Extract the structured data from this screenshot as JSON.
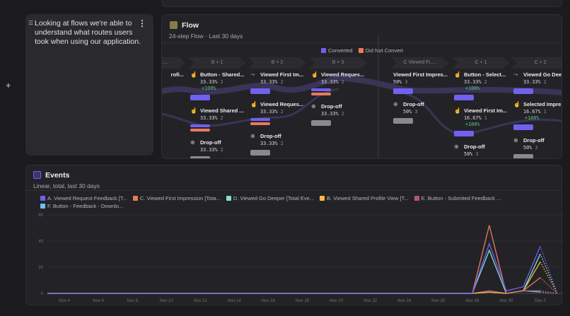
{
  "note": {
    "text": "Looking at flows we're able to understand what routes users took when using our application.",
    "menu_icon": "kebab-menu-icon",
    "drag_icon": "drag-handle-icon"
  },
  "add_icon": "+",
  "flow": {
    "title": "Flow",
    "subtitle": "24-step Flow · Last 30 days",
    "legend": [
      {
        "label": "Converted",
        "color": "#7161f0"
      },
      {
        "label": "Did Not Convert",
        "color": "#ea7a59"
      }
    ],
    "columns": [
      {
        "header": "h.....",
        "nodes": [
          {
            "name": "rofi...",
            "pct": "",
            "count": "",
            "lift": "",
            "bars": []
          }
        ]
      },
      {
        "header": "B + 1",
        "nodes": [
          {
            "icon": "click-icon",
            "name": "Button - Shared...",
            "pct": "33.33%",
            "count": "2",
            "lift": "+100%",
            "bars": [
              "converted"
            ]
          },
          {
            "icon": "click-icon",
            "name": "Viewed Shared ...",
            "pct": "33.33%",
            "count": "2",
            "lift": "",
            "bars": [
              "converted",
              "not_converted"
            ]
          },
          {
            "icon": "dropoff-icon",
            "name": "Drop-off",
            "pct": "33.33%",
            "count": "2",
            "lift": "",
            "bars": [
              "dropoff"
            ]
          }
        ]
      },
      {
        "header": "B + 2",
        "nodes": [
          {
            "icon": "pageview-icon",
            "name": "Viewed First Im...",
            "pct": "33.33%",
            "count": "2",
            "lift": "",
            "bars": [
              "converted"
            ]
          },
          {
            "icon": "click-icon",
            "name": "Viewed Reques...",
            "pct": "33.33%",
            "count": "2",
            "lift": "",
            "bars": [
              "converted",
              "not_converted"
            ]
          },
          {
            "icon": "dropoff-icon",
            "name": "Drop-off",
            "pct": "33.33%",
            "count": "2",
            "lift": "",
            "bars": [
              "dropoff"
            ]
          }
        ]
      },
      {
        "header": "B + 3",
        "nodes": [
          {
            "icon": "click-icon",
            "name": "Viewed Reques...",
            "pct": "33.33%",
            "count": "2",
            "lift": "",
            "bars": [
              "converted",
              "not_converted"
            ]
          },
          {
            "icon": "dropoff-icon",
            "name": "Drop-off",
            "pct": "33.33%",
            "count": "2",
            "lift": "",
            "bars": [
              "dropoff"
            ]
          }
        ]
      },
      {
        "header": "C  Viewed Fi.....",
        "nodes": [
          {
            "icon": "",
            "name": "Viewed First Impres...",
            "pct": "50%",
            "count": "3",
            "lift": "",
            "bars": [
              "converted"
            ]
          },
          {
            "icon": "dropoff-icon",
            "name": "Drop-off",
            "pct": "50%",
            "count": "3",
            "lift": "",
            "bars": [
              "dropoff"
            ]
          }
        ]
      },
      {
        "header": "C + 1",
        "nodes": [
          {
            "icon": "click-icon",
            "name": "Button - Select...",
            "pct": "33.33%",
            "count": "2",
            "lift": "+100%",
            "bars": [
              "converted"
            ]
          },
          {
            "icon": "click-icon",
            "name": "Viewed First Im...",
            "pct": "16.67%",
            "count": "1",
            "lift": "+100%",
            "bars": [
              "converted"
            ]
          },
          {
            "icon": "dropoff-icon",
            "name": "Drop-off",
            "pct": "50%",
            "count": "3",
            "lift": "",
            "bars": [
              "dropoff"
            ]
          }
        ]
      },
      {
        "header": "C + 2",
        "nodes": [
          {
            "icon": "pageview-icon",
            "name": "Viewed Go Dee.",
            "pct": "33.33%",
            "count": "2",
            "lift": "",
            "bars": [
              "converted"
            ]
          },
          {
            "icon": "click-icon",
            "name": "Selected Impre..",
            "pct": "16.67%",
            "count": "1",
            "lift": "+100%",
            "bars": [
              "converted"
            ]
          },
          {
            "icon": "dropoff-icon",
            "name": "Drop-off",
            "pct": "50%",
            "count": "3",
            "lift": "",
            "bars": [
              "dropoff"
            ]
          }
        ]
      }
    ]
  },
  "events": {
    "title": "Events",
    "subtitle": "Linear, total, last 30 days"
  },
  "chart_data": {
    "type": "line",
    "x": [
      "Nov 3",
      "Nov 4",
      "Nov 5",
      "Nov 6",
      "Nov 7",
      "Nov 8",
      "Nov 9",
      "Nov 10",
      "Nov 11",
      "Nov 12",
      "Nov 13",
      "Nov 14",
      "Nov 15",
      "Nov 16",
      "Nov 17",
      "Nov 18",
      "Nov 19",
      "Nov 20",
      "Nov 21",
      "Nov 22",
      "Nov 23",
      "Nov 24",
      "Nov 25",
      "Nov 26",
      "Nov 27",
      "Nov 28",
      "Nov 29",
      "Nov 30",
      "Dec 1",
      "Dec 2",
      "Dec 3"
    ],
    "xticks": [
      "Nov 4",
      "Nov 6",
      "Nov 8",
      "Nov 10",
      "Nov 12",
      "Nov 14",
      "Nov 16",
      "Nov 18",
      "Nov 20",
      "Nov 22",
      "Nov 24",
      "Nov 26",
      "Nov 28",
      "Nov 30",
      "Dec 2"
    ],
    "yticks": [
      0,
      20,
      40,
      60
    ],
    "ylim": [
      0,
      60
    ],
    "grid": true,
    "legend": "top",
    "incomplete_last_point": true,
    "series": [
      {
        "name": "A. Viewed Request Feedback [T...",
        "color": "#7161f0",
        "values": [
          0,
          0,
          0,
          0,
          0,
          0,
          0,
          0,
          0,
          0,
          0,
          0,
          0,
          0,
          0,
          0,
          0,
          0,
          0,
          0,
          0,
          0,
          0,
          0,
          0,
          0,
          38,
          2,
          5,
          36,
          0
        ]
      },
      {
        "name": "C. Viewed First Impression [Tota...",
        "color": "#ea7a59",
        "values": [
          0,
          0,
          0,
          0,
          0,
          0,
          0,
          0,
          0,
          0,
          0,
          0,
          0,
          0,
          0,
          0,
          0,
          0,
          0,
          0,
          0,
          0,
          0,
          0,
          0,
          0,
          52,
          0,
          2,
          12,
          0
        ]
      },
      {
        "name": "D. Viewed Go Deeper [Total Eve...",
        "color": "#80e1d9",
        "values": [
          0,
          0,
          0,
          0,
          0,
          0,
          0,
          0,
          0,
          0,
          0,
          0,
          0,
          0,
          0,
          0,
          0,
          0,
          0,
          0,
          0,
          0,
          0,
          0,
          0,
          0,
          33,
          0,
          2,
          30,
          0
        ]
      },
      {
        "name": "B. Viewed Shared Profile View [T...",
        "color": "#f8bc3b",
        "values": [
          0,
          0,
          0,
          0,
          0,
          0,
          0,
          0,
          0,
          0,
          0,
          0,
          0,
          0,
          0,
          0,
          0,
          0,
          0,
          0,
          0,
          0,
          0,
          0,
          0,
          0,
          1,
          0,
          2,
          24,
          0
        ]
      },
      {
        "name": "E. Button - Submited Feedback ...",
        "color": "#b2596e",
        "values": [
          0,
          0,
          0,
          0,
          0,
          0,
          0,
          0,
          0,
          0,
          0,
          0,
          0,
          0,
          0,
          0,
          0,
          0,
          0,
          0,
          0,
          0,
          0,
          0,
          0,
          0,
          2,
          0,
          2,
          2,
          0
        ]
      },
      {
        "name": "F. Button - Feedback - Downlo...",
        "color": "#72bef4",
        "values": [
          0,
          0,
          0,
          0,
          0,
          0,
          0,
          0,
          0,
          0,
          0,
          0,
          0,
          0,
          0,
          0,
          0,
          0,
          0,
          0,
          0,
          0,
          0,
          0,
          0,
          0,
          1,
          0,
          2,
          1,
          0
        ]
      }
    ]
  }
}
